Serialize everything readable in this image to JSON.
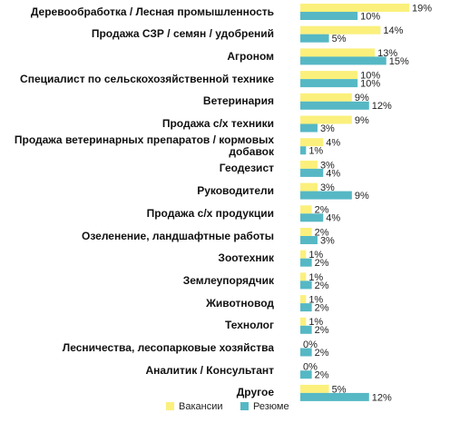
{
  "chart_data": {
    "type": "bar",
    "orientation": "horizontal",
    "categories": [
      "Деревообработка / Лесная промышленность",
      "Продажа СЗР / семян / удобрений",
      "Агроном",
      "Специалист по сельскохозяйственной технике",
      "Ветеринария",
      "Продажа с/х техники",
      "Продажа ветеринарных препаратов / кормовых добавок",
      "Геодезист",
      "Руководители",
      "Продажа с/х продукции",
      "Озеленение, ландшафтные работы",
      "Зоотехник",
      "Землеупорядчик",
      "Животновод",
      "Технолог",
      "Лесничества, лесопарковые хозяйства",
      "Аналитик / Консультант",
      "Другое"
    ],
    "series": [
      {
        "name": "Вакансии",
        "color": "#fbf07c",
        "values": [
          19,
          14,
          13,
          10,
          9,
          9,
          4,
          3,
          3,
          2,
          2,
          1,
          1,
          1,
          1,
          0,
          0,
          5
        ],
        "value_labels": [
          "19%",
          "14%",
          "13%",
          "10%",
          "9%",
          "9%",
          "4%",
          "3%",
          "3%",
          "2%",
          "2%",
          "1%",
          "1%",
          "1%",
          "1%",
          "0%",
          "0%",
          "5%"
        ]
      },
      {
        "name": "Резюме",
        "color": "#56b8c4",
        "values": [
          10,
          5,
          15,
          10,
          12,
          3,
          1,
          4,
          9,
          4,
          3,
          2,
          2,
          2,
          2,
          2,
          2,
          12
        ],
        "value_labels": [
          "10%",
          "5%",
          "15%",
          "10%",
          "12%",
          "3%",
          "1%",
          "4%",
          "9%",
          "4%",
          "3%",
          "2%",
          "2%",
          "2%",
          "2%",
          "2%",
          "2%",
          "12%"
        ]
      }
    ],
    "legend": "bottom"
  }
}
